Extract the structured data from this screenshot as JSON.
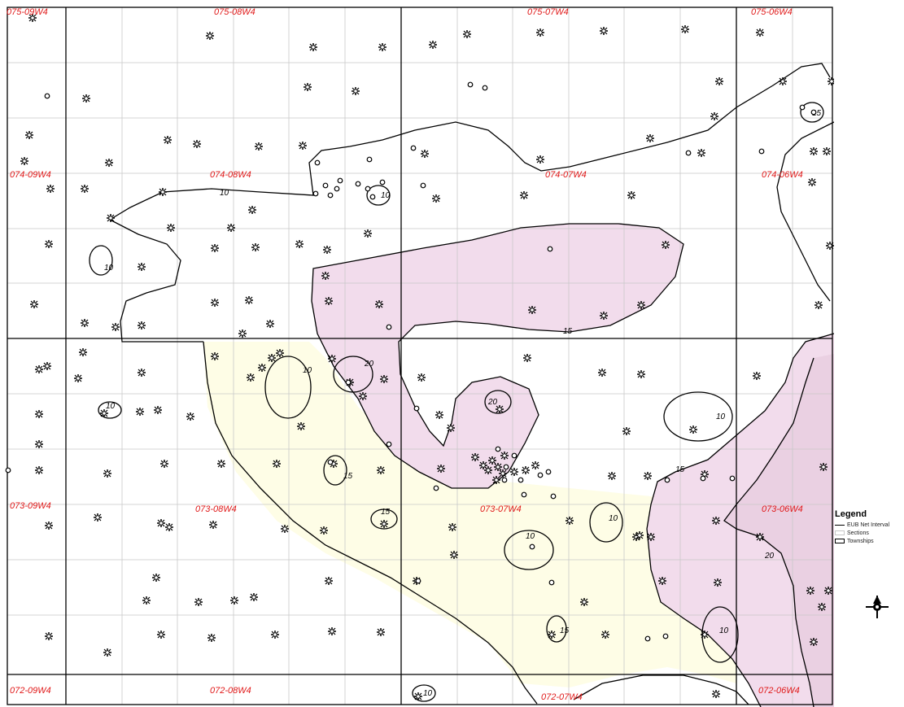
{
  "map": {
    "townships": [
      {
        "label": "075-09W4"
      },
      {
        "label": "075-08W4"
      },
      {
        "label": "075-07W4"
      },
      {
        "label": "075-06W4"
      },
      {
        "label": "074-09W4"
      },
      {
        "label": "074-08W4"
      },
      {
        "label": "074-07W4"
      },
      {
        "label": "074-06W4"
      },
      {
        "label": "073-09W4"
      },
      {
        "label": "073-08W4"
      },
      {
        "label": "073-07W4"
      },
      {
        "label": "073-06W4"
      },
      {
        "label": "072-09W4"
      },
      {
        "label": "072-08W4"
      },
      {
        "label": "072-07W4"
      },
      {
        "label": "072-06W4"
      }
    ],
    "contour_labels": [
      "10",
      "10",
      "10",
      "15",
      "15",
      "20",
      "20",
      "10",
      "10",
      "15",
      "10",
      "10",
      "10",
      "15",
      "20",
      "10",
      "15",
      "15",
      "10"
    ],
    "colors": {
      "zone_fill": "#f2dcec",
      "highlight_fill": "#fefde6",
      "section_grid": "#c8c8c8",
      "township_line": "#000000",
      "label_red": "#e01818"
    }
  },
  "legend": {
    "title": "Legend",
    "items": [
      {
        "label": "EUB Net Interval",
        "symbol": "line"
      },
      {
        "label": "Sections",
        "symbol": "section-box"
      },
      {
        "label": "Townships",
        "symbol": "township-box"
      }
    ]
  },
  "north_arrow": {
    "icon": "north-arrow-icon"
  }
}
